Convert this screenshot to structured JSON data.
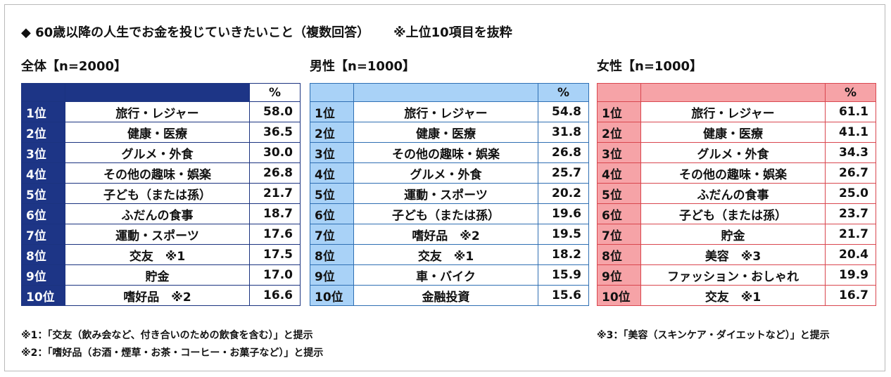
{
  "title": "◆ 60歳以降の人生でお金を投じていきたいこと（複数回答）",
  "title_note": "※上位10項目を抜粋",
  "chart_data": [
    {
      "type": "table",
      "title": "全体【n=2000】",
      "header_pct": "%",
      "colors": {
        "header": "#1d3586",
        "border": "#1b3380"
      },
      "rows": [
        {
          "rank": "1位",
          "item": "旅行・レジャー",
          "value": "58.0"
        },
        {
          "rank": "2位",
          "item": "健康・医療",
          "value": "36.5"
        },
        {
          "rank": "3位",
          "item": "グルメ・外食",
          "value": "30.0"
        },
        {
          "rank": "4位",
          "item": "その他の趣味・娯楽",
          "value": "26.8"
        },
        {
          "rank": "5位",
          "item": "子ども（または孫）",
          "value": "21.7"
        },
        {
          "rank": "6位",
          "item": "ふだんの食事",
          "value": "18.7"
        },
        {
          "rank": "7位",
          "item": "運動・スポーツ",
          "value": "17.6"
        },
        {
          "rank": "8位",
          "item": "交友　※1",
          "value": "17.5"
        },
        {
          "rank": "9位",
          "item": "貯金",
          "value": "17.0"
        },
        {
          "rank": "10位",
          "item": "嗜好品　※2",
          "value": "16.6"
        }
      ]
    },
    {
      "type": "table",
      "title": "男性【n=1000】",
      "header_pct": "%",
      "colors": {
        "header": "#a9d2f7",
        "border": "#2f6fb3"
      },
      "rows": [
        {
          "rank": "1位",
          "item": "旅行・レジャー",
          "value": "54.8"
        },
        {
          "rank": "2位",
          "item": "健康・医療",
          "value": "31.8"
        },
        {
          "rank": "3位",
          "item": "その他の趣味・娯楽",
          "value": "26.8"
        },
        {
          "rank": "4位",
          "item": "グルメ・外食",
          "value": "25.7"
        },
        {
          "rank": "5位",
          "item": "運動・スポーツ",
          "value": "20.2"
        },
        {
          "rank": "6位",
          "item": "子ども（または孫）",
          "value": "19.6"
        },
        {
          "rank": "7位",
          "item": "嗜好品　※2",
          "value": "19.5"
        },
        {
          "rank": "8位",
          "item": "交友　※1",
          "value": "18.2"
        },
        {
          "rank": "9位",
          "item": "車・バイク",
          "value": "15.9"
        },
        {
          "rank": "10位",
          "item": "金融投資",
          "value": "15.6"
        }
      ]
    },
    {
      "type": "table",
      "title": "女性【n=1000】",
      "header_pct": "%",
      "colors": {
        "header": "#f6a3a7",
        "border": "#d9474f"
      },
      "rows": [
        {
          "rank": "1位",
          "item": "旅行・レジャー",
          "value": "61.1"
        },
        {
          "rank": "2位",
          "item": "健康・医療",
          "value": "41.1"
        },
        {
          "rank": "3位",
          "item": "グルメ・外食",
          "value": "34.3"
        },
        {
          "rank": "4位",
          "item": "その他の趣味・娯楽",
          "value": "26.7"
        },
        {
          "rank": "5位",
          "item": "ふだんの食事",
          "value": "25.0"
        },
        {
          "rank": "6位",
          "item": "子ども（または孫）",
          "value": "23.7"
        },
        {
          "rank": "7位",
          "item": "貯金",
          "value": "21.7"
        },
        {
          "rank": "8位",
          "item": "美容　※3",
          "value": "20.4"
        },
        {
          "rank": "9位",
          "item": "ファッション・おしゃれ",
          "value": "19.9"
        },
        {
          "rank": "10位",
          "item": "交友　※1",
          "value": "16.7"
        }
      ]
    }
  ],
  "footnotes": {
    "note1": "※1：「交友（飲み会など、付き合いのための飲食を含む）」と提示",
    "note2": "※2：「嗜好品（お酒・煙草・お茶・コーヒー・お菓子など）」と提示",
    "note3": "※3：「美容（スキンケア・ダイエットなど）」と提示"
  }
}
